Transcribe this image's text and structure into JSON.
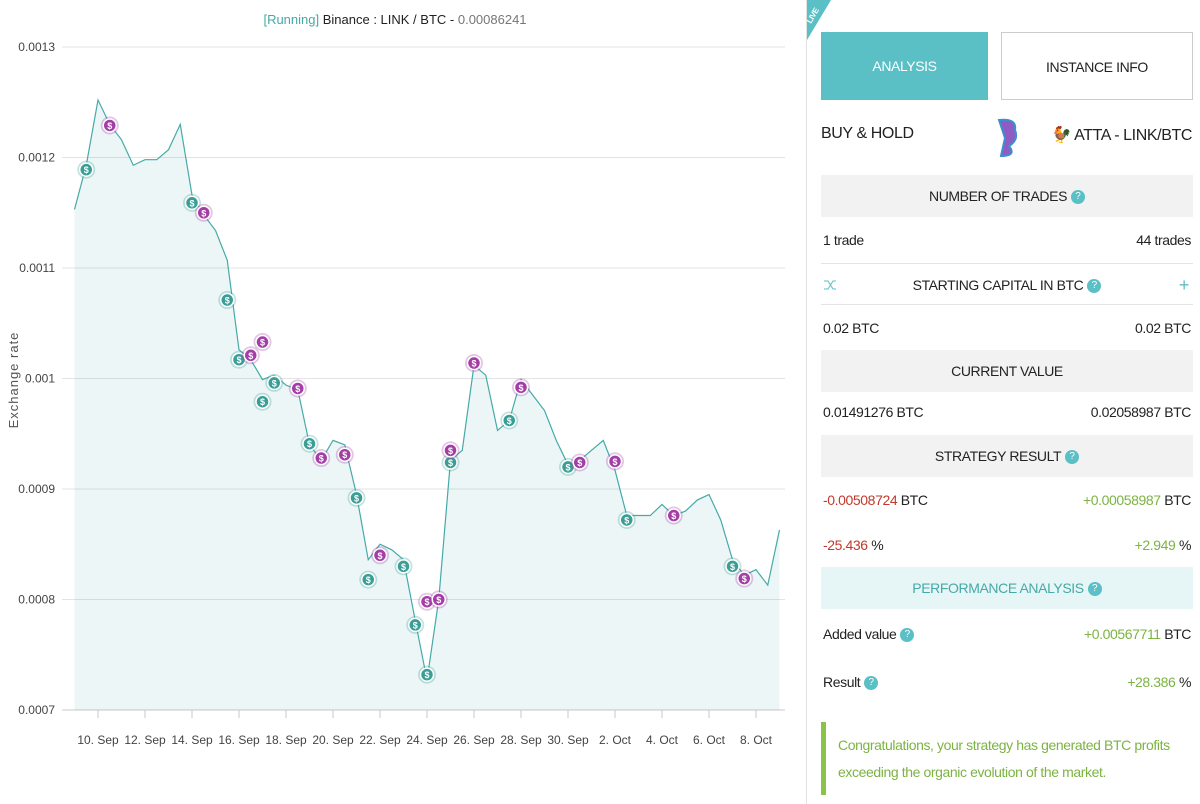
{
  "chart_data": {
    "type": "line",
    "title_status": "[Running]",
    "title": "Binance : LINK / BTC -",
    "title_price": "0.00086241",
    "y_label": "Exchange rate",
    "categories": [
      null,
      null,
      "10. Sep",
      null,
      null,
      null,
      "12. Sep",
      null,
      null,
      null,
      "14. Sep",
      null,
      null,
      null,
      "16. Sep",
      null,
      null,
      null,
      "18. Sep",
      null,
      null,
      null,
      "20. Sep",
      null,
      null,
      null,
      "22. Sep",
      null,
      null,
      null,
      "24. Sep",
      null,
      null,
      null,
      "26. Sep",
      null,
      null,
      null,
      "28. Sep",
      null,
      null,
      null,
      "30. Sep",
      null,
      null,
      null,
      "2. Oct",
      null,
      null,
      null,
      "4. Oct",
      null,
      null,
      null,
      "6. Oct",
      null,
      null,
      null,
      "8. Oct",
      null,
      null
    ],
    "series": [
      {
        "color": "#45aaa8",
        "values": [
          0.001153,
          0.001193,
          0.001252,
          0.00123,
          0.001216,
          0.001193,
          0.001198,
          0.001198,
          0.001207,
          0.00123,
          0.001166,
          0.001148,
          0.001134,
          0.001107,
          0.001026,
          0.001017,
          0.000999,
          0.001003,
          0.000994,
          0.00099,
          0.00094,
          0.000926,
          0.000944,
          0.00094,
          0.000895,
          0.000836,
          0.00085,
          0.000845,
          0.000836,
          0.000781,
          0.000727,
          0.0008,
          0.000926,
          0.000935,
          0.001012,
          0.001003,
          0.000953,
          0.000962,
          0.000999,
          0.000985,
          0.000971,
          0.000944,
          0.000922,
          0.000926,
          0.000935,
          0.000944,
          0.000917,
          0.000876,
          0.000876,
          0.000876,
          0.000886,
          0.000876,
          0.00088,
          0.00089,
          0.000895,
          0.000872,
          0.000836,
          0.000822,
          0.000827,
          0.000813,
          0.000863
        ]
      }
    ],
    "markers": [
      {
        "color": "#3a9e96",
        "values": [
          null,
          0.001189,
          null,
          null,
          null,
          null,
          null,
          null,
          null,
          null,
          0.001159,
          null,
          null,
          0.001071,
          0.001017,
          null,
          0.000979,
          0.000996,
          null,
          null,
          0.000941,
          null,
          null,
          null,
          0.000892,
          0.000818,
          null,
          null,
          0.00083,
          0.000777,
          0.000732,
          null,
          0.000924,
          null,
          null,
          null,
          null,
          0.000962,
          null,
          null,
          null,
          null,
          0.00092,
          null,
          null,
          null,
          null,
          0.000872,
          null,
          null,
          null,
          null,
          null,
          null,
          null,
          null,
          0.00083,
          null,
          null,
          null,
          null
        ]
      },
      {
        "color": "#a23ea6",
        "values": [
          null,
          null,
          null,
          0.001229,
          null,
          null,
          null,
          null,
          null,
          null,
          null,
          0.00115,
          null,
          null,
          null,
          0.001021,
          0.001033,
          null,
          null,
          0.000991,
          null,
          0.000928,
          null,
          0.000931,
          null,
          null,
          0.00084,
          null,
          null,
          null,
          0.000798,
          0.0008,
          0.000935,
          null,
          0.001014,
          null,
          null,
          null,
          0.000992,
          null,
          null,
          null,
          null,
          0.000924,
          null,
          null,
          0.000925,
          null,
          null,
          null,
          null,
          0.000876,
          null,
          null,
          null,
          null,
          null,
          0.000819,
          null,
          null,
          null
        ]
      }
    ],
    "marker_label": "$",
    "ylim": [
      0.0007,
      0.0013
    ],
    "yticks": [
      0.0007,
      0.0008,
      0.0009,
      0.001,
      0.0011,
      0.0012,
      0.0013
    ],
    "grid": true,
    "area": true
  },
  "panel": {
    "badge": "LIVE",
    "tabs": [
      "ANALYSIS",
      "INSTANCE INFO"
    ],
    "left_title": "BUY & HOLD",
    "right_title": "ATTA - LINK/BTC",
    "help": "?",
    "plus": "+",
    "sections": [
      {
        "title": "NUMBER OF TRADES",
        "rows": [
          {
            "left": "1 trade",
            "right": "44 trades"
          }
        ]
      },
      {
        "title": "STARTING CAPITAL IN BTC",
        "rows": [
          {
            "left": "0.02 BTC",
            "right": "0.02 BTC"
          }
        ]
      },
      {
        "title": "CURRENT VALUE",
        "rows": [
          {
            "left": "0.01491276 BTC",
            "right": "0.02058987 BTC"
          }
        ]
      },
      {
        "title": "STRATEGY RESULT",
        "rows": [
          {
            "left": "-0.00508724",
            "left_unit": "BTC",
            "right": "+0.00058987",
            "right_unit": "BTC"
          },
          {
            "left": "-25.436",
            "left_unit": "%",
            "right": "+2.949",
            "right_unit": "%"
          }
        ]
      },
      {
        "title": "PERFORMANCE ANALYSIS",
        "rows": [
          {
            "left": "Added value",
            "right": "+0.00567711",
            "right_unit": "BTC"
          },
          {
            "left": "Result",
            "right": "+28.386",
            "right_unit": "%"
          }
        ]
      }
    ],
    "note": "Congratulations, your strategy has generated BTC profits exceeding the organic evolution of the market."
  }
}
